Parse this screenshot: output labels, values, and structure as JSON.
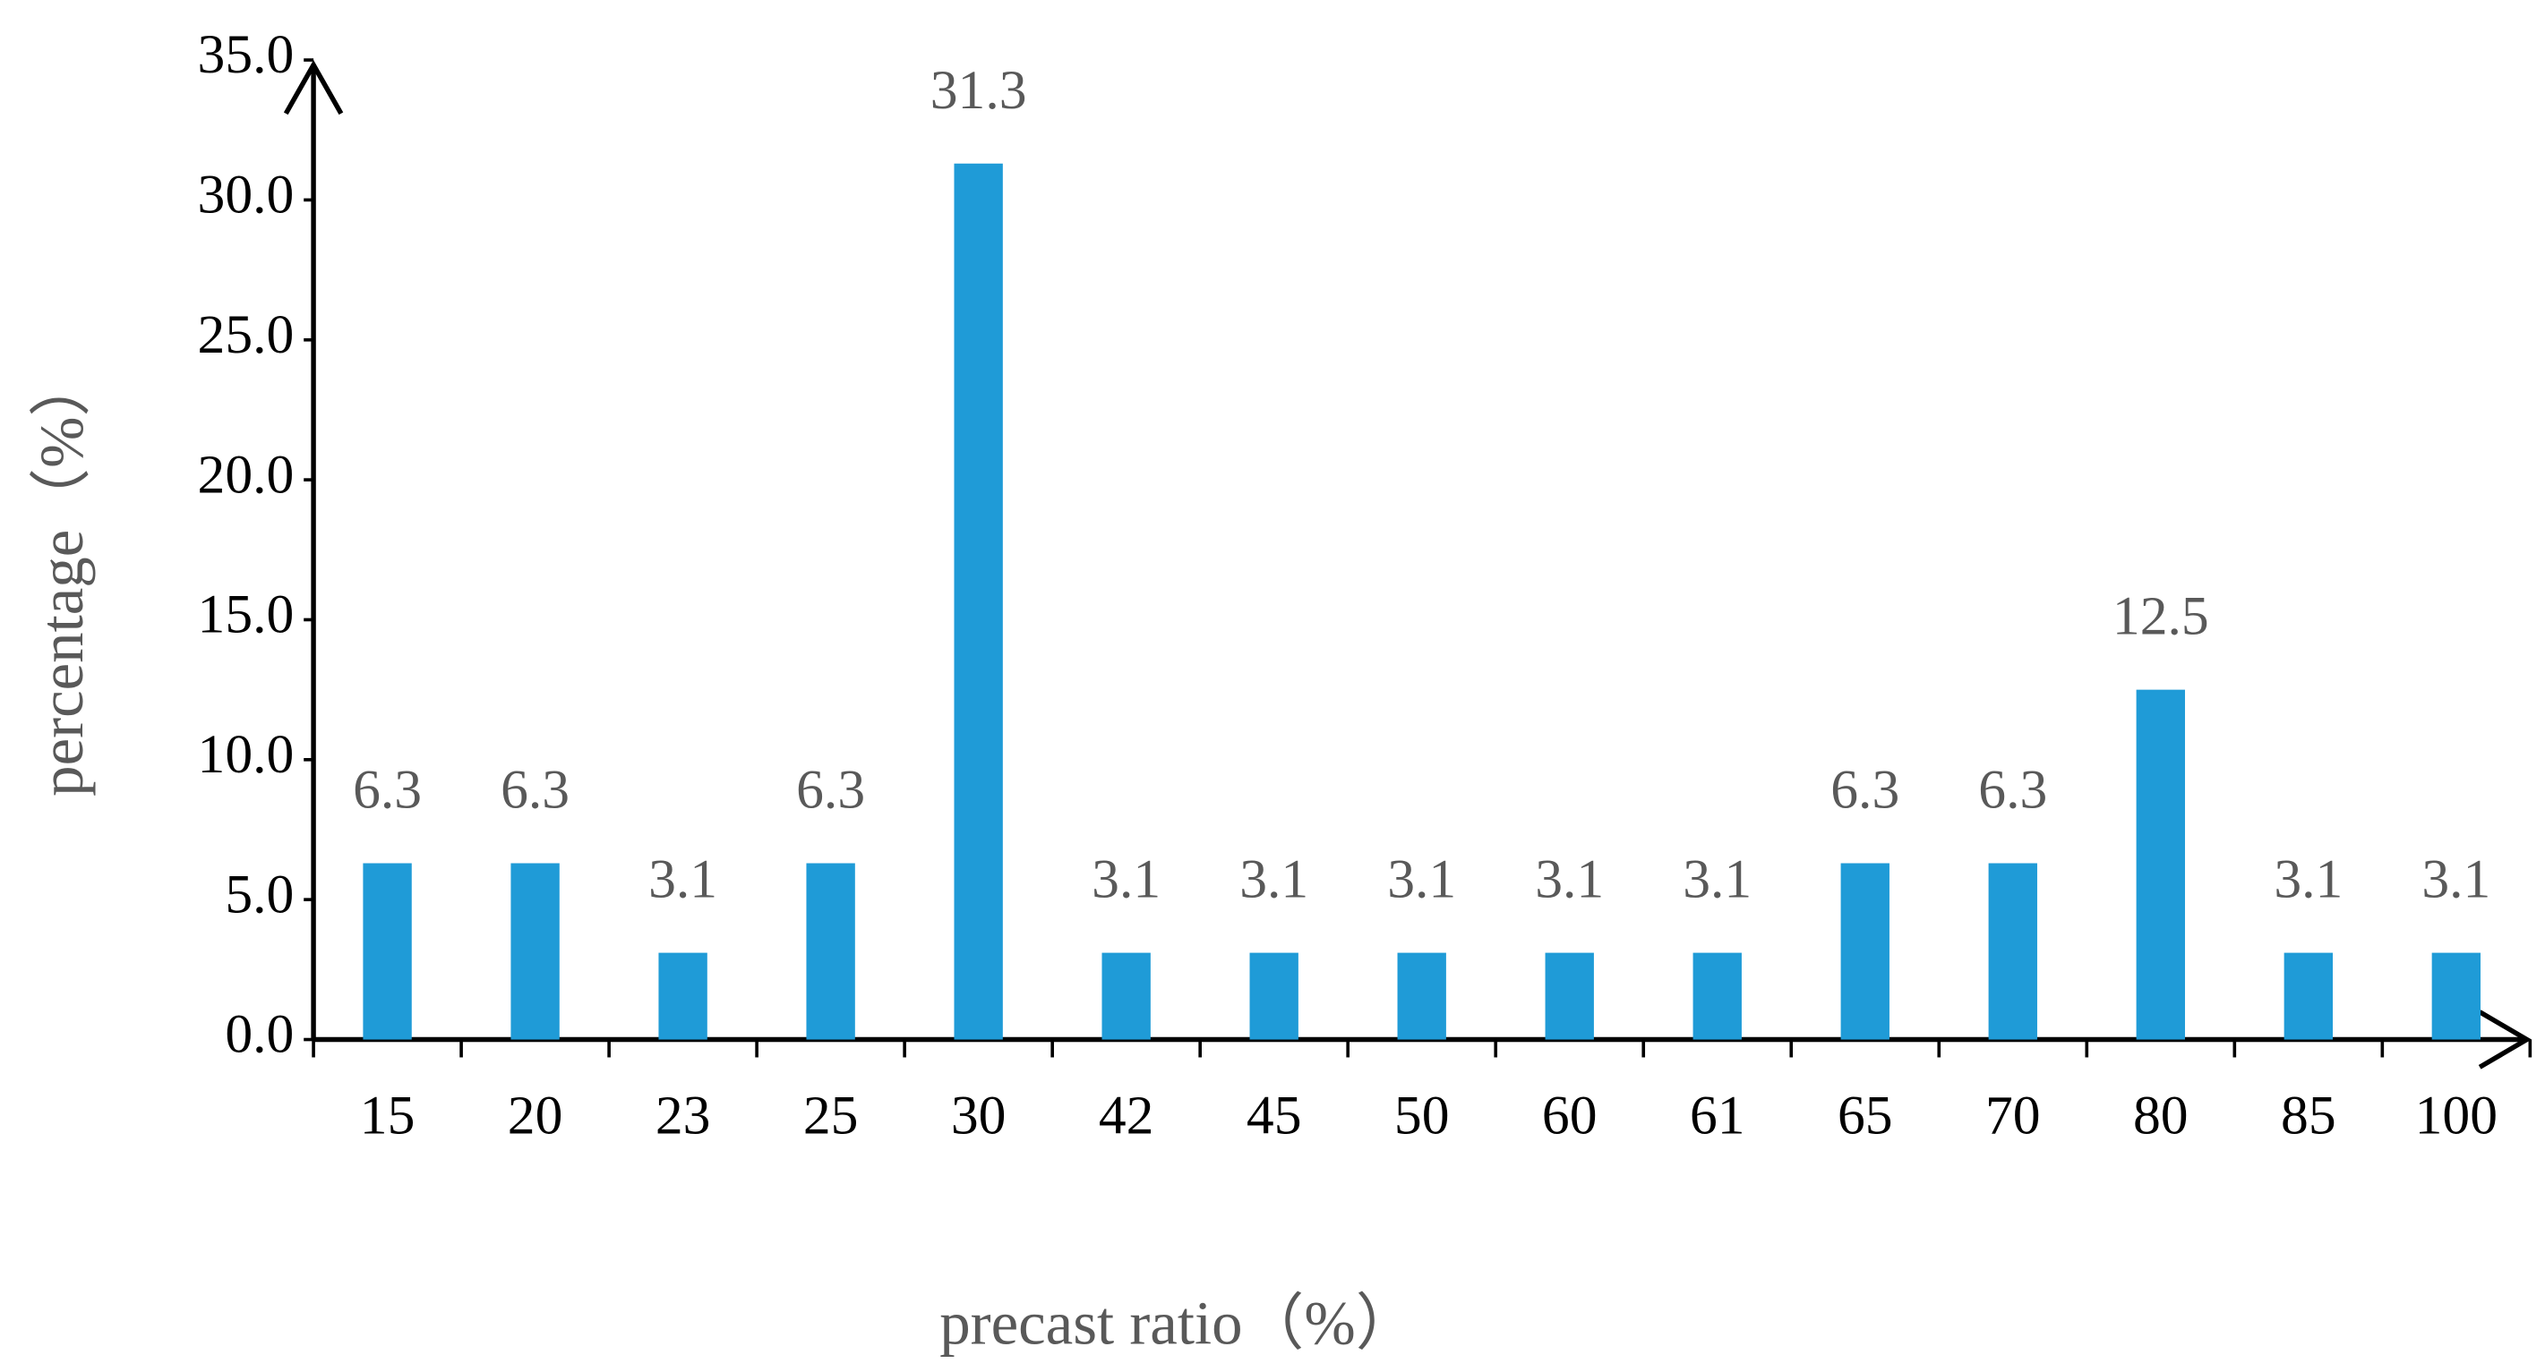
{
  "chart_data": {
    "type": "bar",
    "categories": [
      "15",
      "20",
      "23",
      "25",
      "30",
      "42",
      "45",
      "50",
      "60",
      "61",
      "65",
      "70",
      "80",
      "85",
      "100"
    ],
    "values": [
      6.3,
      6.3,
      3.1,
      6.3,
      31.3,
      3.1,
      3.1,
      3.1,
      3.1,
      3.1,
      6.3,
      6.3,
      12.5,
      3.1,
      3.1
    ],
    "color": "#1f9bd7",
    "xlabel": "precast ratio（%）",
    "ylabel": "percentage（%）",
    "ylim": [
      0,
      35
    ],
    "yticks": [
      {
        "value": 0,
        "label": "0.0"
      },
      {
        "value": 5,
        "label": "5.0"
      },
      {
        "value": 10,
        "label": "10.0"
      },
      {
        "value": 15,
        "label": "15.0"
      },
      {
        "value": 20,
        "label": "20.0"
      },
      {
        "value": 25,
        "label": "25.0"
      },
      {
        "value": 30,
        "label": "30.0"
      },
      {
        "value": 35,
        "label": "35.0"
      }
    ],
    "grid": false
  }
}
